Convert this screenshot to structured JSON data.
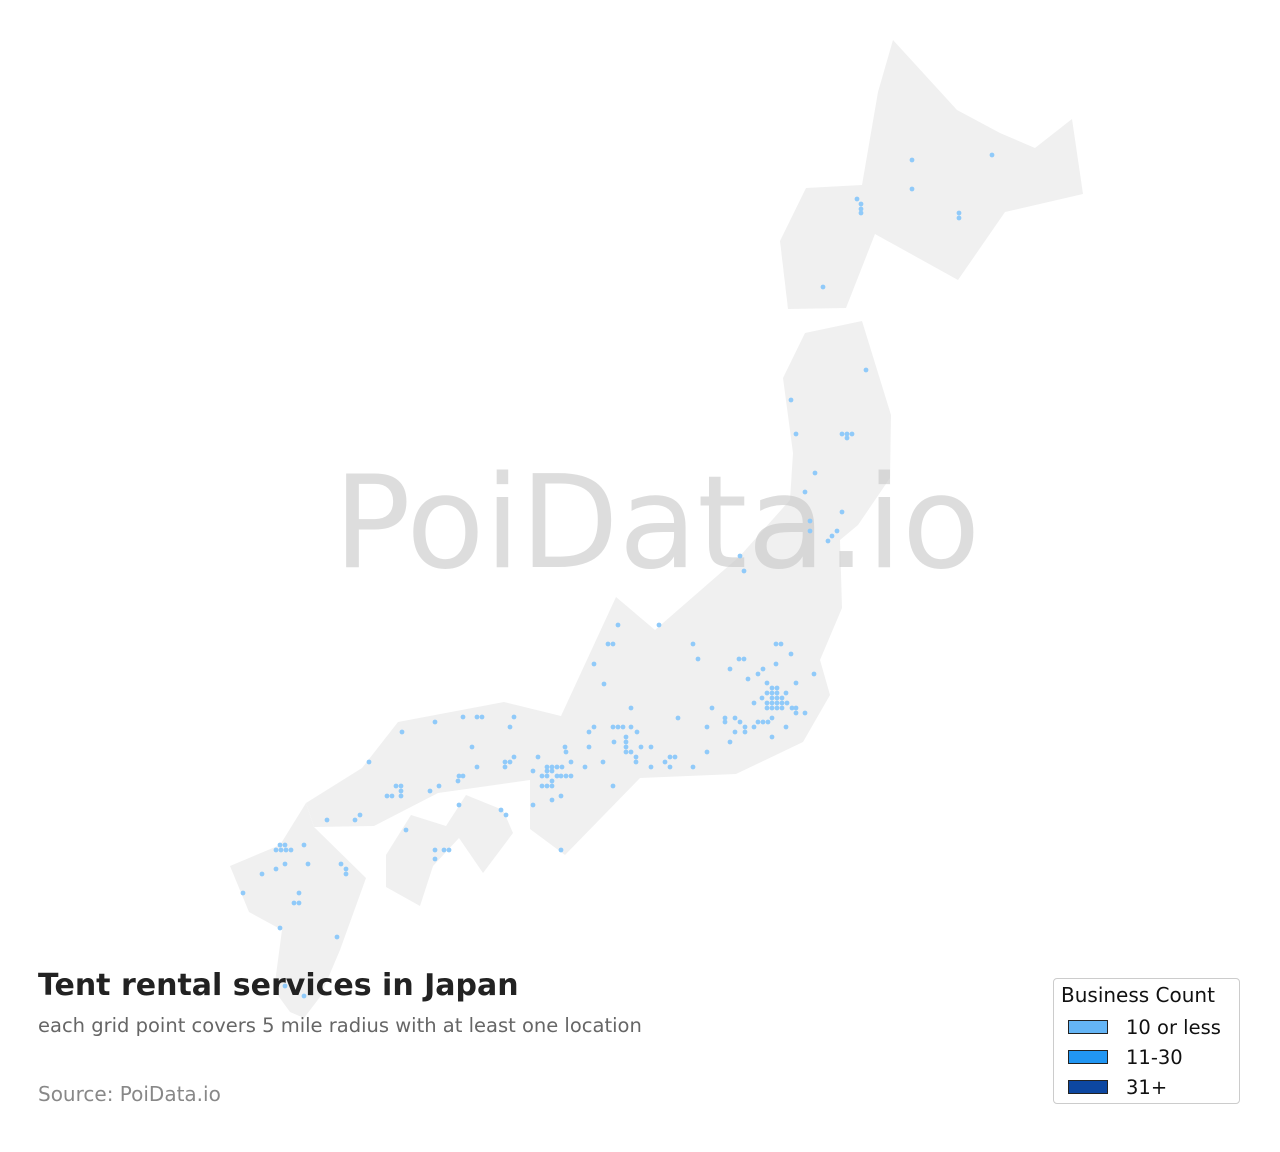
{
  "title": "Tent rental services in Japan",
  "subtitle": "each grid point covers 5 mile radius with at least one location",
  "source": "Source: PoiData.io",
  "watermark": "PoiData.io",
  "colors": {
    "land": "#f0f0f0",
    "dot": "#90caf9",
    "watermark": "#c8c8c8"
  },
  "legend": {
    "title": "Business Count",
    "items": [
      {
        "label": "10 or less",
        "color": "#64b5f6"
      },
      {
        "label": "11-30",
        "color": "#2196f3"
      },
      {
        "label": "31+",
        "color": "#0d47a1"
      }
    ]
  }
}
